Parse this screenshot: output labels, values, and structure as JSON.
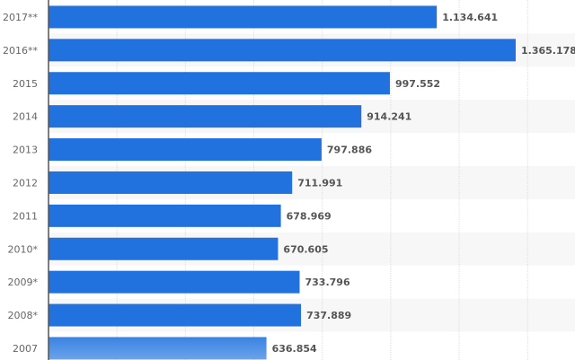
{
  "chart_data": {
    "type": "bar",
    "orientation": "horizontal",
    "title": "",
    "xlabel": "",
    "ylabel": "",
    "categories": [
      "2017**",
      "2016**",
      "2015",
      "2014",
      "2013",
      "2012",
      "2011",
      "2010*",
      "2009*",
      "2008*",
      "2007"
    ],
    "values": [
      1134641,
      1365178,
      997552,
      914241,
      797886,
      711991,
      678969,
      670605,
      733796,
      737889,
      636854
    ],
    "value_labels": [
      "1.134.641",
      "1.365.178",
      "997.552",
      "914.241",
      "797.886",
      "711.991",
      "678.969",
      "670.605",
      "733.796",
      "737.889",
      "636.854"
    ],
    "xlim": [
      0,
      1600000
    ],
    "grid_step": 200000,
    "grid": true,
    "legend": "none",
    "bar_color": "#2172de"
  }
}
